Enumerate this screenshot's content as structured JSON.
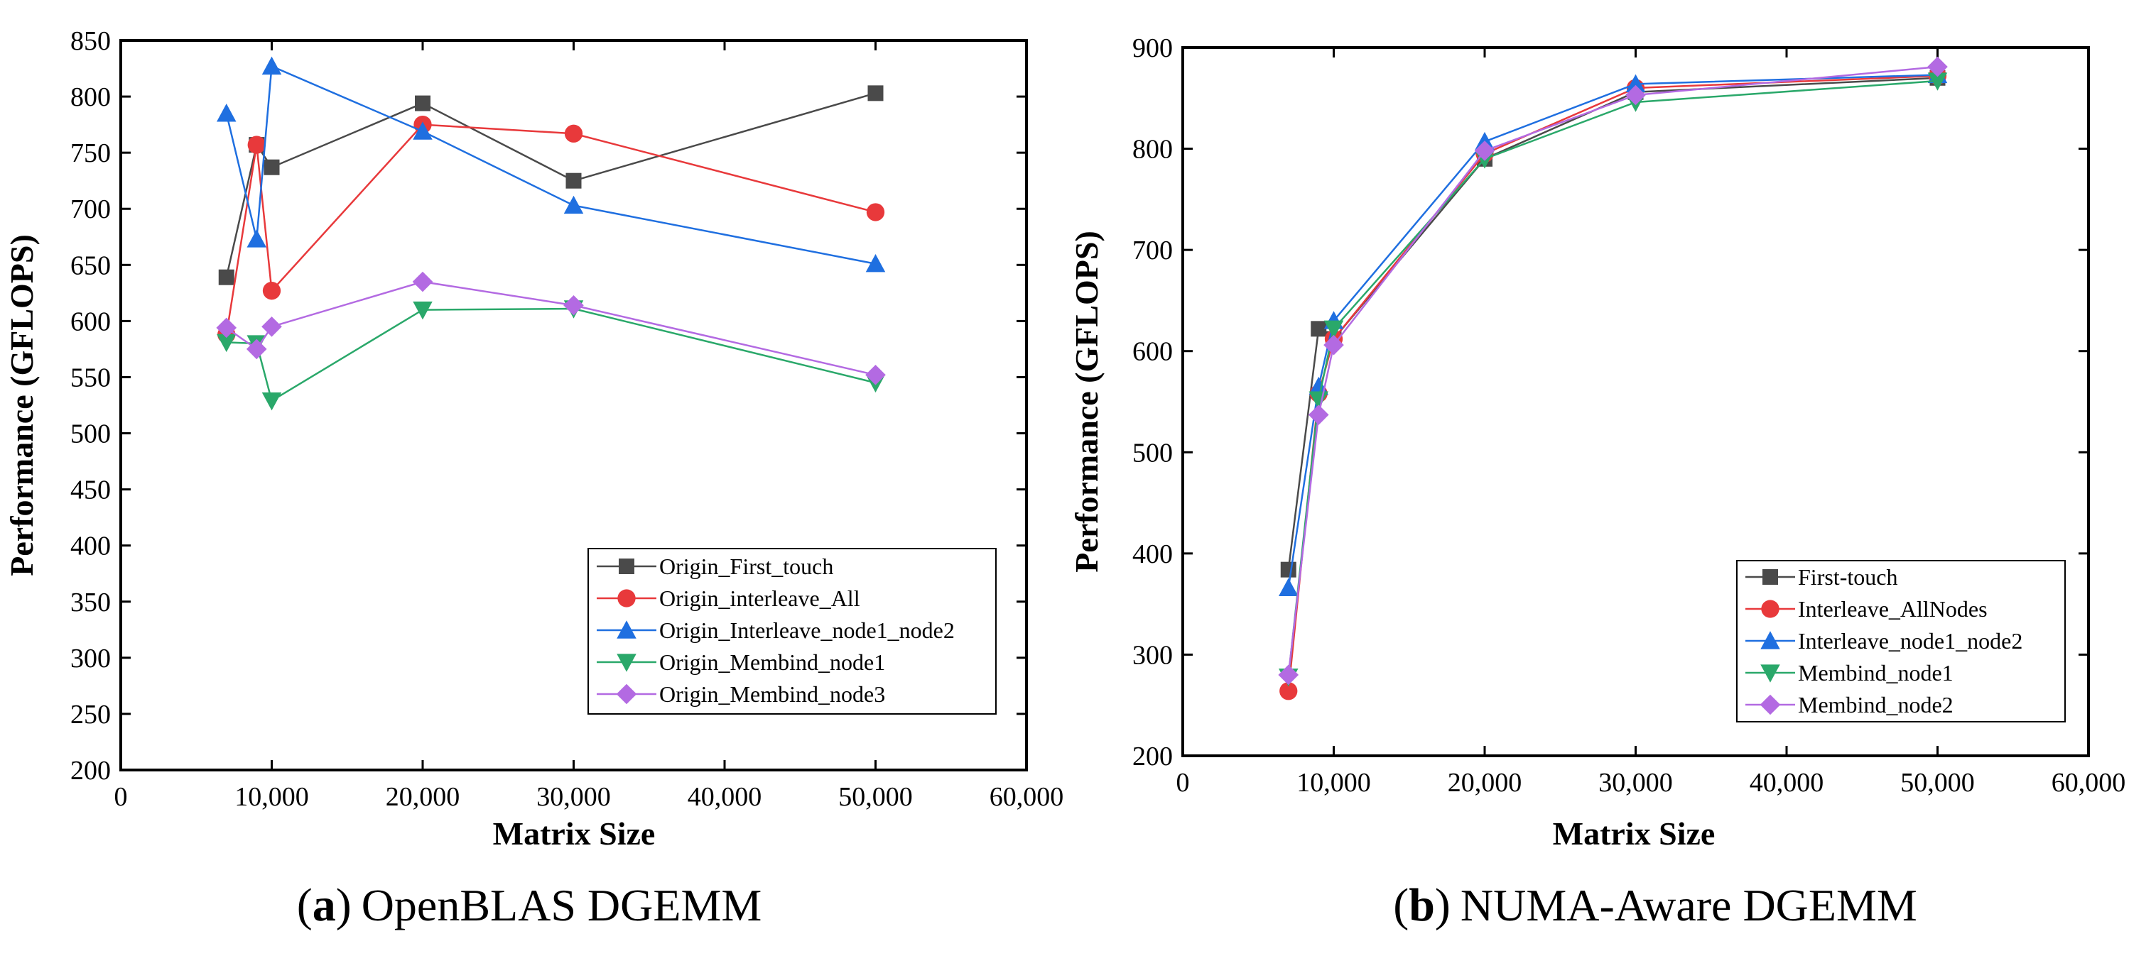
{
  "chart_data": [
    {
      "type": "line",
      "panel_label": "a",
      "caption": "OpenBLAS DGEMM",
      "xlabel": "Matrix Size",
      "ylabel": "Performance (GFLOPS)",
      "xlim": [
        0,
        60000
      ],
      "ylim": [
        200,
        850
      ],
      "xticks": [
        0,
        10000,
        20000,
        30000,
        40000,
        50000,
        60000
      ],
      "xtick_labels": [
        "0",
        "10,000",
        "20,000",
        "30,000",
        "40,000",
        "50,000",
        "60,000"
      ],
      "yticks": [
        200,
        250,
        300,
        350,
        400,
        450,
        500,
        550,
        600,
        650,
        700,
        750,
        800,
        850
      ],
      "ytick_labels": [
        "200",
        "250",
        "300",
        "350",
        "400",
        "450",
        "500",
        "550",
        "600",
        "650",
        "700",
        "750",
        "800",
        "850"
      ],
      "grid": false,
      "legend_position": "bottom-right",
      "x": [
        7000,
        9000,
        10000,
        20000,
        30000,
        50000
      ],
      "series": [
        {
          "name": "Origin_First_touch",
          "color": "#4a4a4a",
          "marker": "square",
          "values": [
            639,
            757,
            737,
            794,
            725,
            803
          ]
        },
        {
          "name": "Origin_interleave_All",
          "color": "#e8393b",
          "marker": "circle",
          "values": [
            588,
            757,
            627,
            775,
            767,
            697
          ]
        },
        {
          "name": "Origin_Interleave_node1_node2",
          "color": "#1f6fe0",
          "marker": "triangle-up",
          "values": [
            785,
            673,
            827,
            769,
            703,
            651
          ]
        },
        {
          "name": "Origin_Membind_node1",
          "color": "#2aa86a",
          "marker": "triangle-down",
          "values": [
            581,
            580,
            529,
            610,
            611,
            545
          ]
        },
        {
          "name": "Origin_Membind_node3",
          "color": "#b36ae2",
          "marker": "diamond",
          "values": [
            594,
            575,
            595,
            635,
            614,
            552
          ]
        }
      ]
    },
    {
      "type": "line",
      "panel_label": "b",
      "caption": "NUMA-Aware DGEMM",
      "xlabel": "Matrix Size",
      "ylabel": "Performance (GFLOPS)",
      "xlim": [
        0,
        60000
      ],
      "ylim": [
        200,
        900
      ],
      "xticks": [
        0,
        10000,
        20000,
        30000,
        40000,
        50000,
        60000
      ],
      "xtick_labels": [
        "0",
        "10,000",
        "20,000",
        "30,000",
        "40,000",
        "50,000",
        "60,000"
      ],
      "yticks": [
        200,
        300,
        400,
        500,
        600,
        700,
        800,
        900
      ],
      "ytick_labels": [
        "200",
        "300",
        "400",
        "500",
        "600",
        "700",
        "800",
        "900"
      ],
      "grid": false,
      "legend_position": "bottom-right",
      "x": [
        7000,
        9000,
        10000,
        20000,
        30000,
        50000
      ],
      "series": [
        {
          "name": "First-touch",
          "color": "#4a4a4a",
          "marker": "square",
          "values": [
            384,
            622,
            612,
            790,
            856,
            870
          ]
        },
        {
          "name": "Interleave_AllNodes",
          "color": "#e8393b",
          "marker": "circle",
          "values": [
            264,
            558,
            612,
            795,
            860,
            872
          ]
        },
        {
          "name": "Interleave_node1_node2",
          "color": "#1f6fe0",
          "marker": "triangle-up",
          "values": [
            366,
            565,
            630,
            807,
            864,
            873
          ]
        },
        {
          "name": "Membind_node1",
          "color": "#2aa86a",
          "marker": "triangle-down",
          "values": [
            278,
            552,
            622,
            790,
            846,
            867
          ]
        },
        {
          "name": "Membind_node2",
          "color": "#b36ae2",
          "marker": "diamond",
          "values": [
            280,
            537,
            606,
            798,
            853,
            881
          ]
        }
      ]
    }
  ]
}
